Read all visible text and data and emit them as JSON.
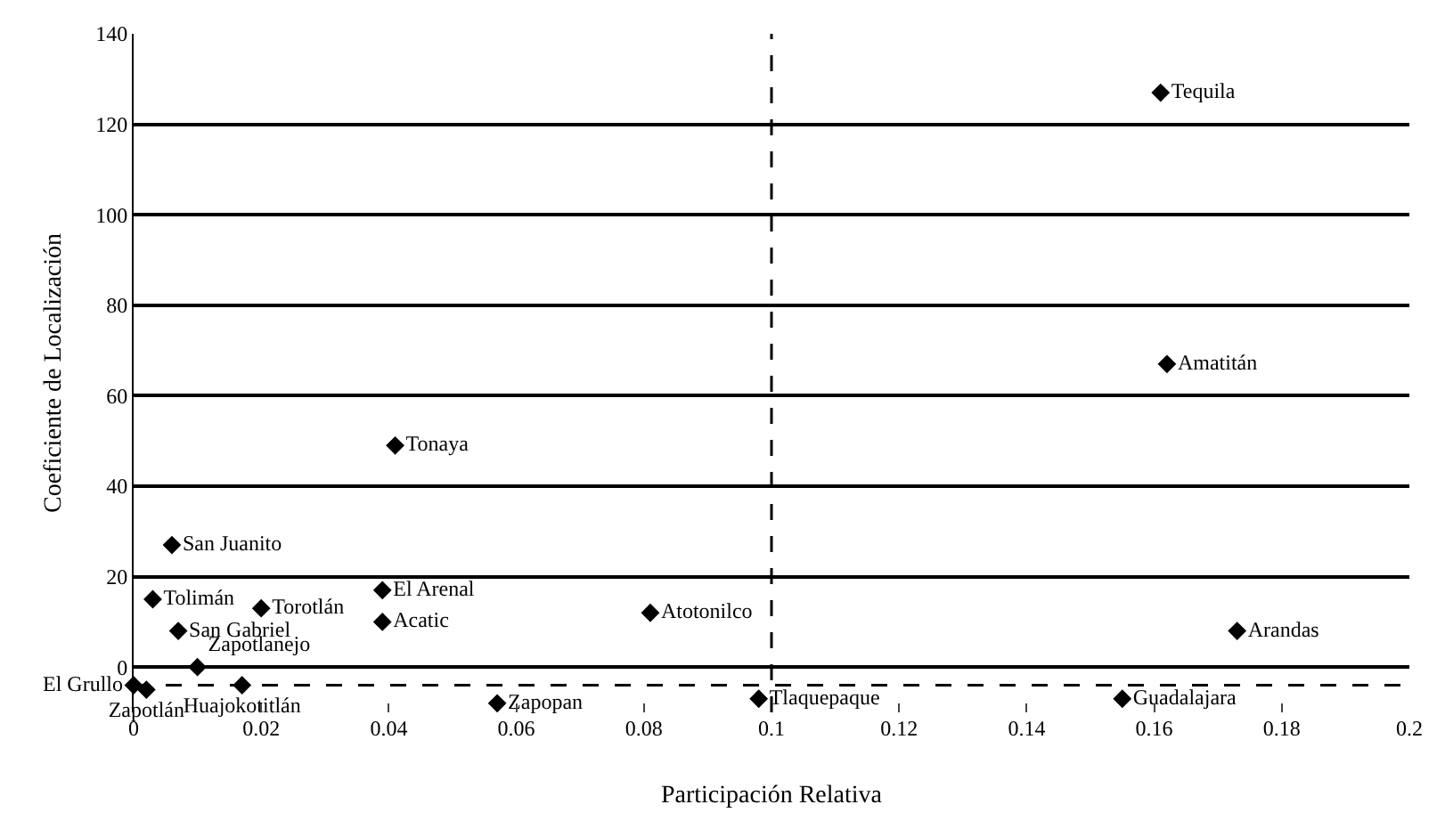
{
  "chart_data": {
    "type": "scatter",
    "xlabel": "Participación Relativa",
    "ylabel": "Coeficiente de Localización",
    "xlim": [
      0,
      0.2
    ],
    "xticks": [
      0,
      0.02,
      0.04,
      0.06,
      0.08,
      0.1,
      0.12,
      0.14,
      0.16,
      0.18,
      0.2
    ],
    "ylim": [
      -10,
      140
    ],
    "yticks": [
      0,
      20,
      40,
      60,
      80,
      100,
      120,
      140
    ],
    "grid": "y",
    "marker": "diamond",
    "legend": false,
    "ref_lines": [
      {
        "axis": "x",
        "value": 0.1,
        "line_style": "dashed",
        "color": "#000000"
      },
      {
        "axis": "y",
        "value": -4,
        "line_style": "dashed",
        "color": "#000000"
      }
    ],
    "series": [
      {
        "name": "Tequila",
        "color": "#000000",
        "x": [
          0.161
        ],
        "values": [
          127
        ]
      },
      {
        "name": "Amatitán",
        "color": "#000000",
        "x": [
          0.162
        ],
        "values": [
          67
        ]
      },
      {
        "name": "Tonaya",
        "color": "#000000",
        "x": [
          0.041
        ],
        "values": [
          49
        ]
      },
      {
        "name": "San Juanito",
        "color": "#000000",
        "x": [
          0.006
        ],
        "values": [
          27
        ]
      },
      {
        "name": "Tolimán",
        "color": "#000000",
        "x": [
          0.003
        ],
        "values": [
          15
        ]
      },
      {
        "name": "Torotlán",
        "color": "#000000",
        "x": [
          0.02
        ],
        "values": [
          13
        ]
      },
      {
        "name": "San Gabriel",
        "color": "#000000",
        "x": [
          0.007
        ],
        "values": [
          8
        ]
      },
      {
        "name": "Zapotlanejo",
        "color": "#000000",
        "x": [
          0.01
        ],
        "values": [
          0
        ]
      },
      {
        "name": "El Arenal",
        "color": "#000000",
        "x": [
          0.039
        ],
        "values": [
          17
        ]
      },
      {
        "name": "Acatic",
        "color": "#000000",
        "x": [
          0.039
        ],
        "values": [
          10
        ]
      },
      {
        "name": "Atotonilco",
        "color": "#000000",
        "x": [
          0.081
        ],
        "values": [
          12
        ]
      },
      {
        "name": "Arandas",
        "color": "#000000",
        "x": [
          0.173
        ],
        "values": [
          8
        ]
      },
      {
        "name": "El Grullo",
        "color": "#000000",
        "x": [
          0
        ],
        "values": [
          -4
        ]
      },
      {
        "name": "Zapotlán",
        "color": "#000000",
        "x": [
          0.002
        ],
        "values": [
          -5
        ]
      },
      {
        "name": "Huajokotitlán",
        "color": "#000000",
        "x": [
          0.017
        ],
        "values": [
          -4
        ]
      },
      {
        "name": "Zapopan",
        "color": "#000000",
        "x": [
          0.057
        ],
        "values": [
          -8
        ]
      },
      {
        "name": "Tlaquepaque",
        "color": "#000000",
        "x": [
          0.098
        ],
        "values": [
          -7
        ]
      },
      {
        "name": "Guadalajara",
        "color": "#000000",
        "x": [
          0.155
        ],
        "values": [
          -7
        ]
      }
    ]
  }
}
